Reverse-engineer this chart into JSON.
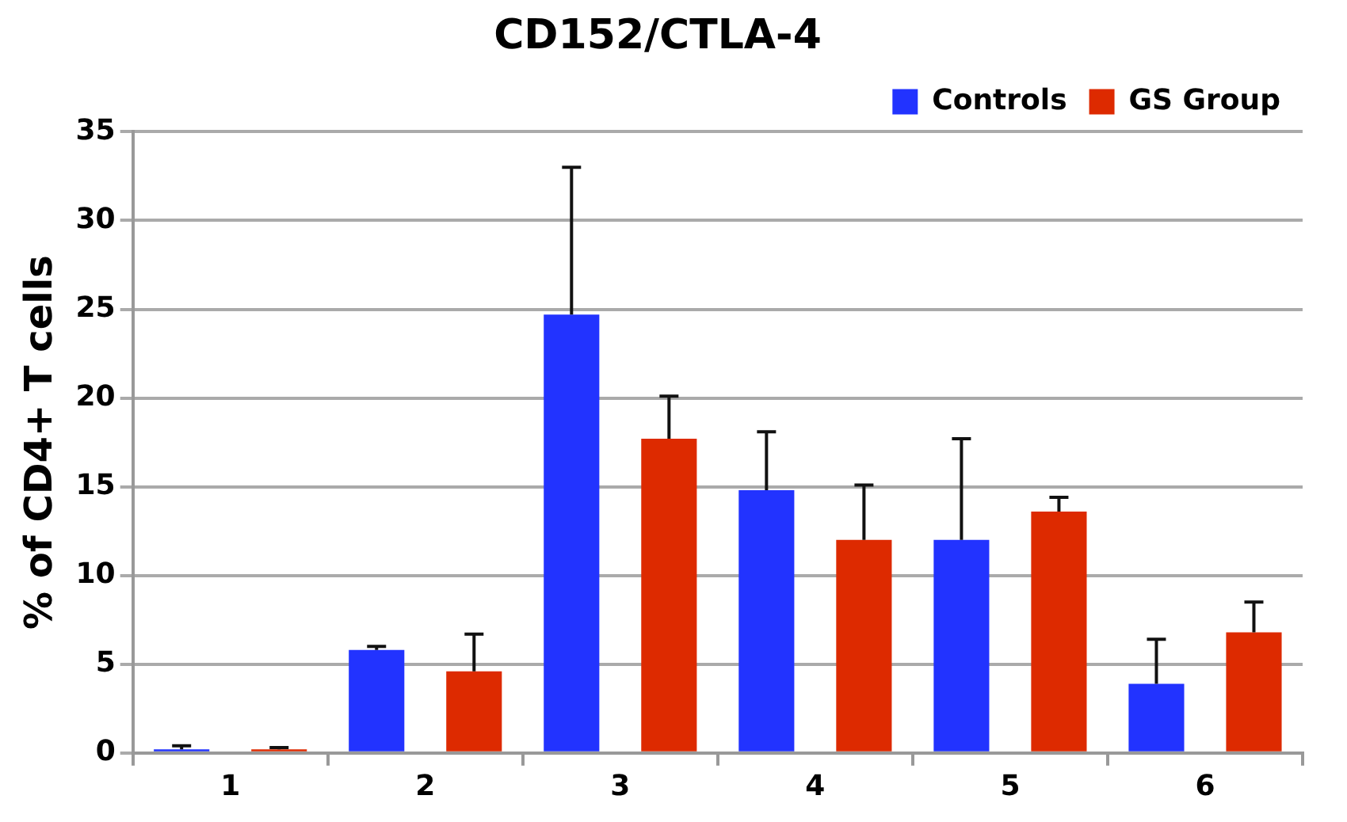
{
  "chart_data": {
    "type": "bar",
    "title": "CD152/CTLA-4",
    "ylabel": "% of CD4+ T cells",
    "categories": [
      "1",
      "2",
      "3",
      "4",
      "5",
      "6"
    ],
    "series": [
      {
        "name": "Controls",
        "color": "#2233ff",
        "values": [
          0.2,
          5.8,
          24.7,
          14.8,
          12.0,
          3.9
        ],
        "errors": [
          [
            0.2,
            0.4
          ],
          [
            5.8,
            6.0
          ],
          [
            24.7,
            33.0
          ],
          [
            14.8,
            18.1
          ],
          [
            12.0,
            17.7
          ],
          [
            3.9,
            6.4
          ]
        ]
      },
      {
        "name": "GS Group",
        "color": "#dd2a00",
        "values": [
          0.2,
          4.6,
          17.7,
          12.0,
          13.6,
          6.8
        ],
        "errors": [
          [
            0.2,
            0.3
          ],
          [
            4.6,
            6.7
          ],
          [
            17.7,
            20.1
          ],
          [
            12.0,
            15.1
          ],
          [
            13.6,
            14.4
          ],
          [
            6.8,
            8.5
          ]
        ]
      }
    ],
    "ylim": [
      0,
      35
    ],
    "yticks": [
      0,
      5,
      10,
      15,
      20,
      25,
      30,
      35
    ],
    "grid": "y",
    "legend": "top right"
  }
}
